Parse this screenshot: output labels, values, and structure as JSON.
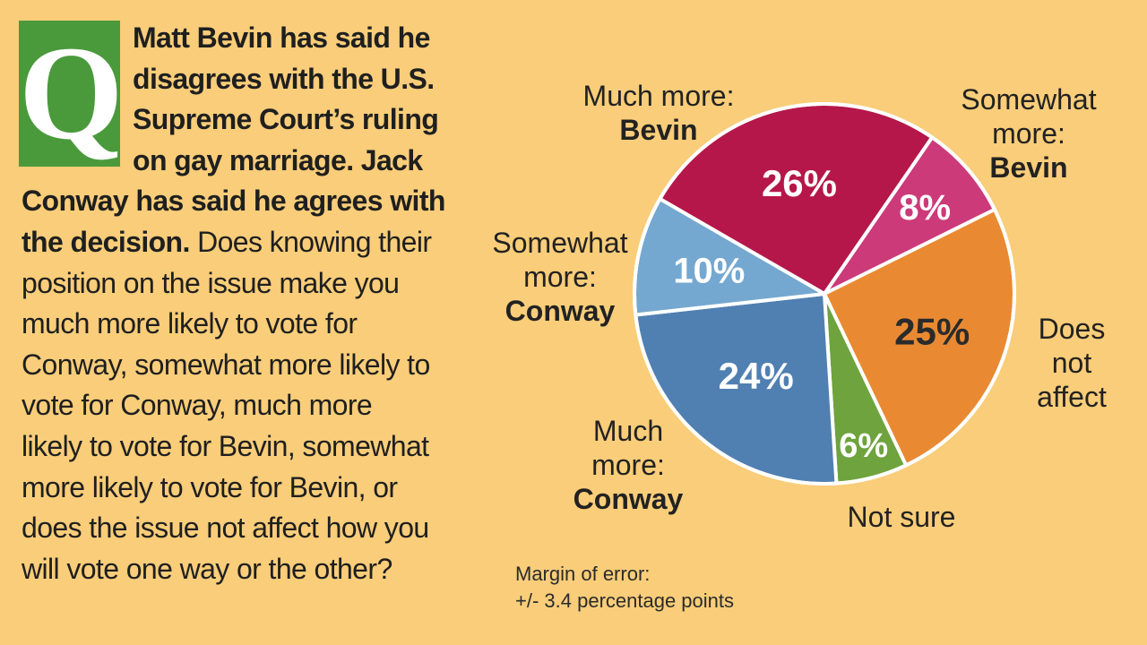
{
  "q_letter": "Q",
  "question": {
    "bold_lines": [
      "Matt Bevin has said he",
      "disagrees with the U.S.",
      "Supreme Court’s ruling",
      "on gay marriage. Jack"
    ],
    "bold_full_line": "Conway has said he agrees with",
    "bold_tail": "the decision.",
    "normal_tail": " Does knowing their",
    "normal_lines": [
      "position on the issue make you",
      "much more likely to vote for",
      "Conway, somewhat more likely to",
      "vote for Conway, much more",
      "likely to vote for Bevin, somewhat",
      "more likely to vote for Bevin, or",
      "does the issue not affect how you",
      "will vote one way or the other?"
    ]
  },
  "chart_data": {
    "type": "pie",
    "slices": [
      {
        "label_lines": [
          "Much more:",
          "Bevin"
        ],
        "value": 26,
        "value_label": "26%",
        "color": "#b5174a"
      },
      {
        "label_lines": [
          "Somewhat",
          "more:",
          "Bevin"
        ],
        "value": 8,
        "value_label": "8%",
        "color": "#cc3a7a"
      },
      {
        "label_lines": [
          "Does",
          "not",
          "affect"
        ],
        "value": 25,
        "value_label": "25%",
        "color": "#e98a32"
      },
      {
        "label_lines": [
          "Not sure"
        ],
        "value": 6,
        "value_label": "6%",
        "color": "#6ea33e"
      },
      {
        "label_lines": [
          "Much",
          "more:",
          "Conway"
        ],
        "value": 24,
        "value_label": "24%",
        "color": "#5080b2"
      },
      {
        "label_lines": [
          "Somewhat",
          "more:",
          "Conway"
        ],
        "value": 10,
        "value_label": "10%",
        "color": "#75a8d0"
      }
    ]
  },
  "margin_note": [
    "Margin of error:",
    "+/- 3.4 percentage points"
  ]
}
